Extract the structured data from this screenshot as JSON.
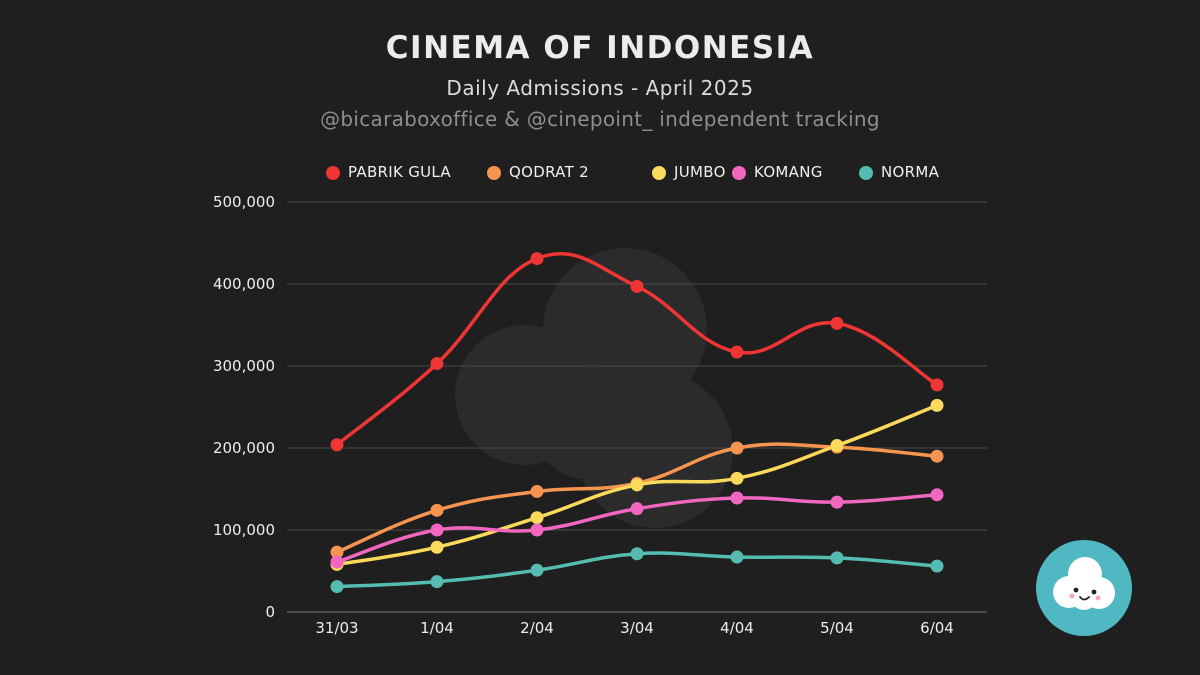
{
  "header": {
    "title": "CINEMA OF INDONESIA",
    "subtitle": "Daily Admissions - April 2025",
    "credit": "@bicaraboxoffice & @cinepoint_ independent tracking"
  },
  "colors": {
    "background": "#1f1f1f",
    "grid": "#4a4a4a",
    "axis_text": "#eeeeee",
    "logo_bg": "#4fb8c2",
    "watermark": "#2c2c2c"
  },
  "chart_data": {
    "type": "line",
    "title": "CINEMA OF INDONESIA",
    "subtitle": "Daily Admissions - April 2025",
    "xlabel": "",
    "ylabel": "",
    "categories": [
      "31/03",
      "1/04",
      "2/04",
      "3/04",
      "4/04",
      "5/04",
      "6/04"
    ],
    "ylim": [
      0,
      500000
    ],
    "yticks": [
      0,
      100000,
      200000,
      300000,
      400000,
      500000
    ],
    "ytick_labels": [
      "0",
      "100,000",
      "200,000",
      "300,000",
      "400,000",
      "500,000"
    ],
    "grid": true,
    "legend_position": "top-center",
    "series": [
      {
        "name": "PABRIK GULA",
        "color": "#f03535",
        "values": [
          204000,
          303000,
          431000,
          397000,
          317000,
          352000,
          277000
        ]
      },
      {
        "name": "QODRAT 2",
        "color": "#f79450",
        "values": [
          73000,
          124000,
          147000,
          157000,
          200000,
          201000,
          190000
        ]
      },
      {
        "name": "JUMBO",
        "color": "#fbd95a",
        "values": [
          58000,
          79000,
          115000,
          155000,
          163000,
          203000,
          252000
        ]
      },
      {
        "name": "KOMANG",
        "color": "#f167bf",
        "values": [
          61000,
          100000,
          100000,
          126000,
          139000,
          134000,
          143000
        ]
      },
      {
        "name": "NORMA",
        "color": "#55bcb1",
        "values": [
          31000,
          37000,
          51000,
          71000,
          67000,
          66000,
          56000
        ]
      }
    ]
  }
}
